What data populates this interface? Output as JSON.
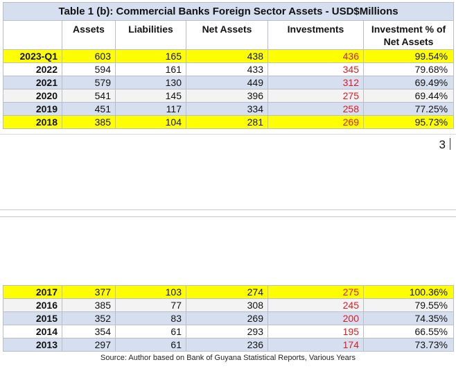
{
  "table": {
    "title": "Table 1 (b): Commercial Banks Foreign Sector Assets - USD$Millions",
    "headers": [
      "",
      "Assets",
      "Liabilities",
      "Net Assets",
      "Investments",
      "Investment % of Net Assets"
    ],
    "rows_page1": [
      {
        "year": "2023-Q1",
        "assets": "603",
        "liabilities": "165",
        "net_assets": "438",
        "investments": "436",
        "pct": "99.54%"
      },
      {
        "year": "2022",
        "assets": "594",
        "liabilities": "161",
        "net_assets": "433",
        "investments": "345",
        "pct": "79.68%"
      },
      {
        "year": "2021",
        "assets": "579",
        "liabilities": "130",
        "net_assets": "449",
        "investments": "312",
        "pct": "69.49%"
      },
      {
        "year": "2020",
        "assets": "541",
        "liabilities": "145",
        "net_assets": "396",
        "investments": "275",
        "pct": "69.44%"
      },
      {
        "year": "2019",
        "assets": "451",
        "liabilities": "117",
        "net_assets": "334",
        "investments": "258",
        "pct": "77.25%"
      },
      {
        "year": "2018",
        "assets": "385",
        "liabilities": "104",
        "net_assets": "281",
        "investments": "269",
        "pct": "95.73%"
      }
    ],
    "rows_page2": [
      {
        "year": "2017",
        "assets": "377",
        "liabilities": "103",
        "net_assets": "274",
        "investments": "275",
        "pct": "100.36%"
      },
      {
        "year": "2016",
        "assets": "385",
        "liabilities": "77",
        "net_assets": "308",
        "investments": "245",
        "pct": "79.55%"
      },
      {
        "year": "2015",
        "assets": "352",
        "liabilities": "83",
        "net_assets": "269",
        "investments": "200",
        "pct": "74.35%"
      },
      {
        "year": "2014",
        "assets": "354",
        "liabilities": "61",
        "net_assets": "293",
        "investments": "195",
        "pct": "66.55%"
      },
      {
        "year": "2013",
        "assets": "297",
        "liabilities": "61",
        "net_assets": "236",
        "investments": "174",
        "pct": "73.73%"
      }
    ]
  },
  "page_number": "3",
  "source": "Source: Author based on Bank of Guyana Statistical Reports, Various Years",
  "colors": {
    "highlight": "#ffff00",
    "band_blue": "#d6dff0",
    "investment_text": "#e0191f"
  }
}
